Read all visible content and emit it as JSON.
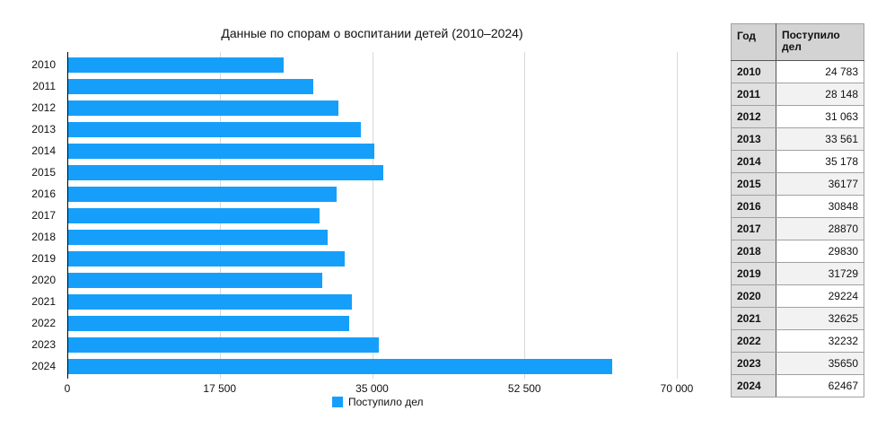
{
  "chart_data": {
    "type": "bar",
    "orientation": "horizontal",
    "title": "Данные по спорам о воспитании детей (2010–2024)",
    "xlabel": "",
    "ylabel": "",
    "xlim": [
      0,
      70000
    ],
    "x_ticks": [
      "0",
      "17 500",
      "35 000",
      "52 500",
      "70 000"
    ],
    "grid": true,
    "legend_position": "bottom",
    "categories": [
      "2010",
      "2011",
      "2012",
      "2013",
      "2014",
      "2015",
      "2016",
      "2017",
      "2018",
      "2019",
      "2020",
      "2021",
      "2022",
      "2023",
      "2024"
    ],
    "series": [
      {
        "name": "Поступило дел",
        "color": "#169ffa",
        "values": [
          24783,
          28148,
          31063,
          33561,
          35178,
          36177,
          30848,
          28870,
          29830,
          31729,
          29224,
          32625,
          32232,
          35650,
          62467
        ]
      }
    ]
  },
  "legend": {
    "label": "Поступило дел"
  },
  "table": {
    "headers": [
      "Год",
      "Поступило дел"
    ],
    "rows": [
      [
        "2010",
        "24 783"
      ],
      [
        "2011",
        "28 148"
      ],
      [
        "2012",
        "31 063"
      ],
      [
        "2013",
        "33 561"
      ],
      [
        "2014",
        "35 178"
      ],
      [
        "2015",
        "36177"
      ],
      [
        "2016",
        "30848"
      ],
      [
        "2017",
        "28870"
      ],
      [
        "2018",
        "29830"
      ],
      [
        "2019",
        "31729"
      ],
      [
        "2020",
        "29224"
      ],
      [
        "2021",
        "32625"
      ],
      [
        "2022",
        "32232"
      ],
      [
        "2023",
        "35650"
      ],
      [
        "2024",
        "62467"
      ]
    ]
  }
}
